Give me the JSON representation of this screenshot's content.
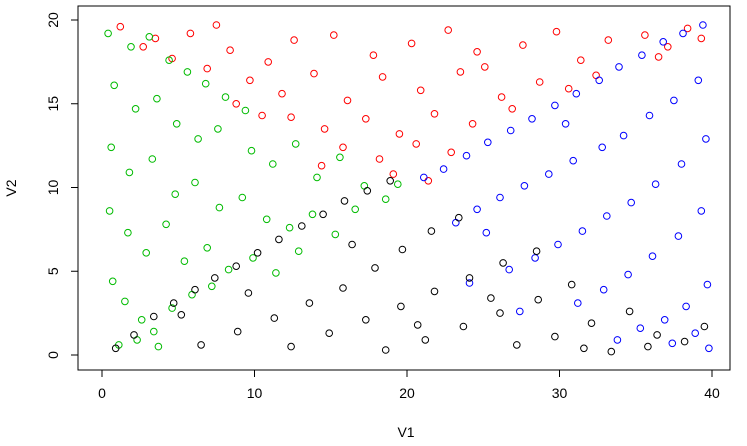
{
  "chart_data": {
    "type": "scatter",
    "xlabel": "V1",
    "ylabel": "V2",
    "xlim": [
      0,
      40
    ],
    "ylim": [
      0,
      20
    ],
    "xticks": [
      0,
      10,
      20,
      30,
      40
    ],
    "yticks": [
      0,
      5,
      10,
      15,
      20
    ],
    "grid": false,
    "legend": "none",
    "marker": "open-circle",
    "series": [
      {
        "color": "#ff0000",
        "points": [
          [
            1.2,
            19.6
          ],
          [
            3.5,
            18.9
          ],
          [
            5.8,
            19.2
          ],
          [
            8.4,
            18.2
          ],
          [
            10.9,
            17.5
          ],
          [
            12.6,
            18.8
          ],
          [
            15.2,
            19.1
          ],
          [
            17.8,
            17.9
          ],
          [
            20.3,
            18.6
          ],
          [
            22.7,
            19.4
          ],
          [
            25.1,
            17.2
          ],
          [
            27.6,
            18.5
          ],
          [
            29.8,
            19.3
          ],
          [
            31.4,
            17.6
          ],
          [
            33.2,
            18.8
          ],
          [
            35.6,
            19.1
          ],
          [
            37.1,
            18.4
          ],
          [
            38.4,
            19.5
          ],
          [
            39.3,
            18.9
          ],
          [
            36.5,
            17.8
          ],
          [
            6.9,
            17.1
          ],
          [
            9.7,
            16.4
          ],
          [
            11.8,
            15.6
          ],
          [
            13.9,
            16.8
          ],
          [
            16.1,
            15.2
          ],
          [
            18.4,
            16.6
          ],
          [
            20.9,
            15.8
          ],
          [
            23.5,
            16.9
          ],
          [
            26.2,
            15.4
          ],
          [
            28.7,
            16.3
          ],
          [
            30.6,
            15.9
          ],
          [
            32.4,
            16.7
          ],
          [
            12.4,
            14.2
          ],
          [
            14.6,
            13.5
          ],
          [
            17.3,
            14.1
          ],
          [
            19.5,
            13.2
          ],
          [
            21.8,
            14.4
          ],
          [
            24.3,
            13.8
          ],
          [
            26.9,
            14.7
          ],
          [
            15.8,
            12.4
          ],
          [
            18.2,
            11.7
          ],
          [
            20.6,
            12.6
          ],
          [
            22.9,
            12.1
          ],
          [
            19.1,
            10.8
          ],
          [
            21.4,
            10.4
          ],
          [
            14.4,
            11.3
          ],
          [
            8.8,
            15.0
          ],
          [
            10.5,
            14.3
          ],
          [
            4.6,
            17.7
          ],
          [
            2.7,
            18.4
          ],
          [
            7.5,
            19.7
          ],
          [
            24.6,
            18.1
          ]
        ]
      },
      {
        "color": "#00bb00",
        "points": [
          [
            0.4,
            19.2
          ],
          [
            1.9,
            18.4
          ],
          [
            3.1,
            19.0
          ],
          [
            4.4,
            17.6
          ],
          [
            5.6,
            16.9
          ],
          [
            6.8,
            16.2
          ],
          [
            8.1,
            15.4
          ],
          [
            9.4,
            14.6
          ],
          [
            0.8,
            16.1
          ],
          [
            2.2,
            14.7
          ],
          [
            3.6,
            15.3
          ],
          [
            4.9,
            13.8
          ],
          [
            6.3,
            12.9
          ],
          [
            7.6,
            13.5
          ],
          [
            9.8,
            12.2
          ],
          [
            11.2,
            11.4
          ],
          [
            12.7,
            12.6
          ],
          [
            14.1,
            10.6
          ],
          [
            15.6,
            11.8
          ],
          [
            17.2,
            10.1
          ],
          [
            18.6,
            9.3
          ],
          [
            0.6,
            12.4
          ],
          [
            1.8,
            10.9
          ],
          [
            3.3,
            11.7
          ],
          [
            4.8,
            9.6
          ],
          [
            6.1,
            10.3
          ],
          [
            7.7,
            8.8
          ],
          [
            9.2,
            9.4
          ],
          [
            10.8,
            8.1
          ],
          [
            12.3,
            7.6
          ],
          [
            13.8,
            8.4
          ],
          [
            15.3,
            7.2
          ],
          [
            0.5,
            8.6
          ],
          [
            1.7,
            7.3
          ],
          [
            2.9,
            6.1
          ],
          [
            4.2,
            7.8
          ],
          [
            5.4,
            5.6
          ],
          [
            6.9,
            6.4
          ],
          [
            8.3,
            5.1
          ],
          [
            9.9,
            5.8
          ],
          [
            11.4,
            4.9
          ],
          [
            12.9,
            6.2
          ],
          [
            0.7,
            4.4
          ],
          [
            1.5,
            3.2
          ],
          [
            2.6,
            2.1
          ],
          [
            3.4,
            1.4
          ],
          [
            1.1,
            0.6
          ],
          [
            2.3,
            0.9
          ],
          [
            3.7,
            0.5
          ],
          [
            4.6,
            2.8
          ],
          [
            5.9,
            3.6
          ],
          [
            7.2,
            4.1
          ],
          [
            16.6,
            8.7
          ],
          [
            19.4,
            10.2
          ]
        ]
      },
      {
        "color": "#0000ff",
        "points": [
          [
            39.4,
            19.7
          ],
          [
            38.1,
            19.2
          ],
          [
            36.8,
            18.7
          ],
          [
            35.4,
            17.9
          ],
          [
            33.9,
            17.2
          ],
          [
            32.6,
            16.4
          ],
          [
            31.1,
            15.6
          ],
          [
            29.7,
            14.9
          ],
          [
            28.2,
            14.1
          ],
          [
            26.8,
            13.4
          ],
          [
            25.3,
            12.7
          ],
          [
            23.9,
            11.9
          ],
          [
            22.4,
            11.1
          ],
          [
            21.1,
            10.6
          ],
          [
            39.1,
            16.4
          ],
          [
            37.5,
            15.2
          ],
          [
            35.9,
            14.3
          ],
          [
            34.2,
            13.1
          ],
          [
            32.8,
            12.4
          ],
          [
            30.9,
            11.6
          ],
          [
            29.3,
            10.8
          ],
          [
            27.7,
            10.1
          ],
          [
            26.1,
            9.4
          ],
          [
            24.6,
            8.7
          ],
          [
            23.2,
            7.9
          ],
          [
            39.6,
            12.9
          ],
          [
            38.0,
            11.4
          ],
          [
            36.3,
            10.2
          ],
          [
            34.7,
            9.1
          ],
          [
            33.1,
            8.3
          ],
          [
            31.5,
            7.4
          ],
          [
            29.9,
            6.6
          ],
          [
            28.4,
            5.8
          ],
          [
            26.7,
            5.1
          ],
          [
            25.2,
            7.3
          ],
          [
            39.3,
            8.6
          ],
          [
            37.8,
            7.1
          ],
          [
            36.1,
            5.9
          ],
          [
            34.5,
            4.8
          ],
          [
            32.9,
            3.9
          ],
          [
            31.2,
            3.1
          ],
          [
            39.7,
            4.2
          ],
          [
            38.3,
            2.9
          ],
          [
            36.9,
            2.1
          ],
          [
            35.3,
            1.6
          ],
          [
            33.8,
            0.9
          ],
          [
            37.4,
            0.7
          ],
          [
            38.9,
            1.3
          ],
          [
            39.8,
            0.4
          ],
          [
            27.4,
            2.6
          ],
          [
            24.1,
            4.3
          ],
          [
            30.4,
            13.8
          ]
        ]
      },
      {
        "color": "#000000",
        "points": [
          [
            0.9,
            0.4
          ],
          [
            2.1,
            1.2
          ],
          [
            3.4,
            2.3
          ],
          [
            4.7,
            3.1
          ],
          [
            6.1,
            3.9
          ],
          [
            7.4,
            4.6
          ],
          [
            8.8,
            5.3
          ],
          [
            10.2,
            6.1
          ],
          [
            11.6,
            6.9
          ],
          [
            13.1,
            7.7
          ],
          [
            14.5,
            8.4
          ],
          [
            15.9,
            9.2
          ],
          [
            17.4,
            9.8
          ],
          [
            18.9,
            10.4
          ],
          [
            6.5,
            0.6
          ],
          [
            8.9,
            1.4
          ],
          [
            11.3,
            2.2
          ],
          [
            13.6,
            3.1
          ],
          [
            15.8,
            4.0
          ],
          [
            17.9,
            5.2
          ],
          [
            19.7,
            6.3
          ],
          [
            21.6,
            7.4
          ],
          [
            23.4,
            8.2
          ],
          [
            12.4,
            0.5
          ],
          [
            14.9,
            1.3
          ],
          [
            17.3,
            2.1
          ],
          [
            19.6,
            2.9
          ],
          [
            21.8,
            3.8
          ],
          [
            24.1,
            4.6
          ],
          [
            26.3,
            5.5
          ],
          [
            28.5,
            6.2
          ],
          [
            18.6,
            0.3
          ],
          [
            21.2,
            0.9
          ],
          [
            23.7,
            1.7
          ],
          [
            26.1,
            2.5
          ],
          [
            28.6,
            3.3
          ],
          [
            30.8,
            4.2
          ],
          [
            27.2,
            0.6
          ],
          [
            29.7,
            1.1
          ],
          [
            32.1,
            1.9
          ],
          [
            34.6,
            2.6
          ],
          [
            36.4,
            1.2
          ],
          [
            38.2,
            0.8
          ],
          [
            39.5,
            1.7
          ],
          [
            5.2,
            2.4
          ],
          [
            9.6,
            3.7
          ],
          [
            16.4,
            6.6
          ],
          [
            20.7,
            1.8
          ],
          [
            25.5,
            3.4
          ],
          [
            31.6,
            0.4
          ],
          [
            33.4,
            0.2
          ],
          [
            35.8,
            0.5
          ]
        ]
      }
    ]
  }
}
